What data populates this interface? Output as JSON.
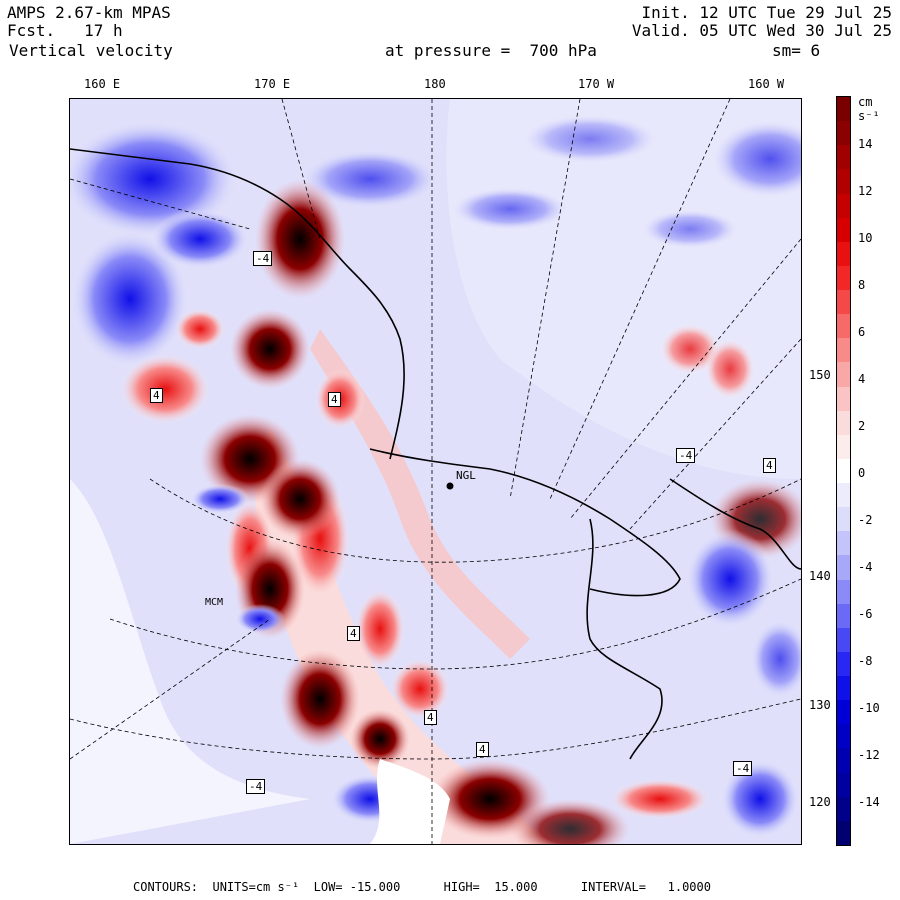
{
  "header": {
    "model": "AMPS 2.67-km MPAS",
    "fcst": "Fcst.   17 h",
    "field": "Vertical velocity",
    "init": "Init. 12 UTC Tue 29 Jul 25",
    "valid": "Valid. 05 UTC Wed 30 Jul 25",
    "pressure": "at pressure =  700 hPa",
    "smoothing": "sm= 6"
  },
  "longitude_labels": [
    "160 E",
    "170 E",
    "180",
    "170 W",
    "160 W"
  ],
  "latitude_labels": [
    "150 W",
    "140 W",
    "130 W",
    "120 W"
  ],
  "colorbar": {
    "units": "cm s⁻¹",
    "tick_labels": [
      "14",
      "12",
      "10",
      "8",
      "6",
      "4",
      "2",
      "0",
      "-2",
      "-4",
      "-6",
      "-8",
      "-10",
      "-12",
      "-14"
    ],
    "colors_top_to_bottom": [
      "#7a0000",
      "#8b0000",
      "#a00000",
      "#b00000",
      "#c40000",
      "#d60000",
      "#e81010",
      "#f22828",
      "#f54848",
      "#f76a6a",
      "#f88a8a",
      "#f9a8a8",
      "#fac4c4",
      "#fbdcdc",
      "#fdecec",
      "#ffffff",
      "#ececfd",
      "#dcdcfb",
      "#c4c4fa",
      "#a8a8f9",
      "#8a8af8",
      "#6a6af7",
      "#4848f5",
      "#2828f2",
      "#1010e8",
      "#0000d6",
      "#0000c4",
      "#0000b0",
      "#0000a0",
      "#00008b",
      "#000070"
    ]
  },
  "map": {
    "station": "MCM",
    "place_labels": [
      "NGL",
      "4",
      "-4",
      "4",
      "-4",
      "4",
      "4",
      "-4",
      "4",
      "-4",
      "4"
    ]
  },
  "footer": {
    "text": "CONTOURS:  UNITS=cm s⁻¹  LOW= -15.000      HIGH=  15.000      INTERVAL=   1.0000"
  }
}
